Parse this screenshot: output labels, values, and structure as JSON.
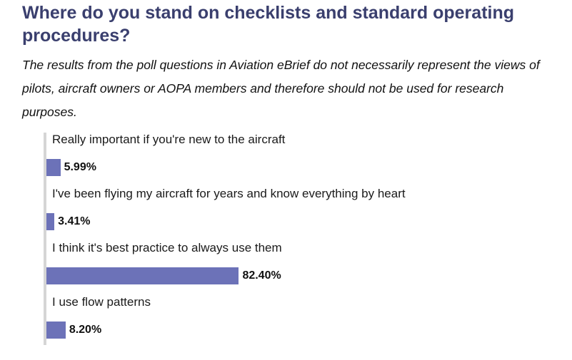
{
  "page": {
    "title": "Where do you stand on checklists and standard operating procedures?",
    "disclaimer": "The results from the poll questions in Aviation eBrief do not necessarily represent the views of pilots, aircraft owners or AOPA members and therefore should not be used for research purposes."
  },
  "chart_data": {
    "type": "bar",
    "orientation": "horizontal",
    "categories": [
      "Really important if you're new to the aircraft",
      "I've been flying my aircraft for years and know everything by heart",
      "I think it's best practice to always use them",
      "I use flow patterns"
    ],
    "values": [
      5.99,
      3.41,
      82.4,
      8.2
    ],
    "value_labels": [
      "5.99%",
      "3.41%",
      "82.40%",
      "8.20%"
    ],
    "xlim": [
      0,
      100
    ],
    "grid": false,
    "bar_color": "#6c72b8"
  }
}
